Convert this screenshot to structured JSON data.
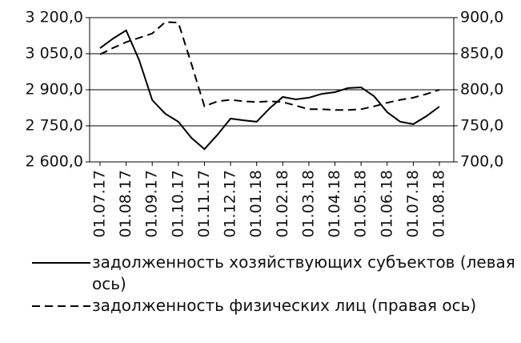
{
  "chart_data": {
    "type": "line",
    "categories": [
      "01.07.17",
      null,
      "01.08.17",
      null,
      "01.09.17",
      null,
      "01.10.17",
      null,
      "01.11.17",
      null,
      "01.12.17",
      null,
      "01.01.18",
      null,
      "01.02.18",
      null,
      "01.03.18",
      null,
      "01.04.18",
      null,
      "01.05.18",
      null,
      "01.06.18",
      null,
      "01.07.18",
      null,
      "01.08.18"
    ],
    "series": [
      {
        "name": "задолженность хозяйствующих субъектов (левая ось)",
        "color": "#000000",
        "dash": "solid",
        "values": [
          3073,
          3113,
          3147,
          3023,
          2857,
          2800,
          2767,
          2700,
          2653,
          2713,
          2780,
          2773,
          2767,
          2823,
          2870,
          2860,
          2867,
          2883,
          2890,
          2907,
          2910,
          2873,
          2807,
          2767,
          2757,
          2790,
          2830
        ]
      },
      {
        "name": "задолженность физических лиц (правая ось)",
        "color": "#000000",
        "dash": "dashed",
        "axis": "y2",
        "values": [
          849,
          858,
          866,
          872,
          878,
          894,
          893,
          836,
          777,
          784,
          786,
          784,
          783,
          784,
          783,
          778,
          773,
          773,
          772,
          772,
          773,
          777,
          782,
          786,
          789,
          794,
          800
        ]
      }
    ],
    "ylim": [
      2600,
      3200
    ],
    "yticks": [
      {
        "value": 2600,
        "label": "2 600,0"
      },
      {
        "value": 2750,
        "label": "2 750,0"
      },
      {
        "value": 2900,
        "label": "2 900,0"
      },
      {
        "value": 3050,
        "label": "3 050,0"
      },
      {
        "value": 3200,
        "label": "3 200,0"
      }
    ],
    "y2lim": [
      700,
      900
    ],
    "y2ticks": [
      {
        "value": 700,
        "label": "700,0"
      },
      {
        "value": 750,
        "label": "750,0"
      },
      {
        "value": 800,
        "label": "800,0"
      },
      {
        "value": 850,
        "label": "850,0"
      },
      {
        "value": 900,
        "label": "900,0"
      }
    ],
    "grid": true,
    "legend": "bottom"
  }
}
